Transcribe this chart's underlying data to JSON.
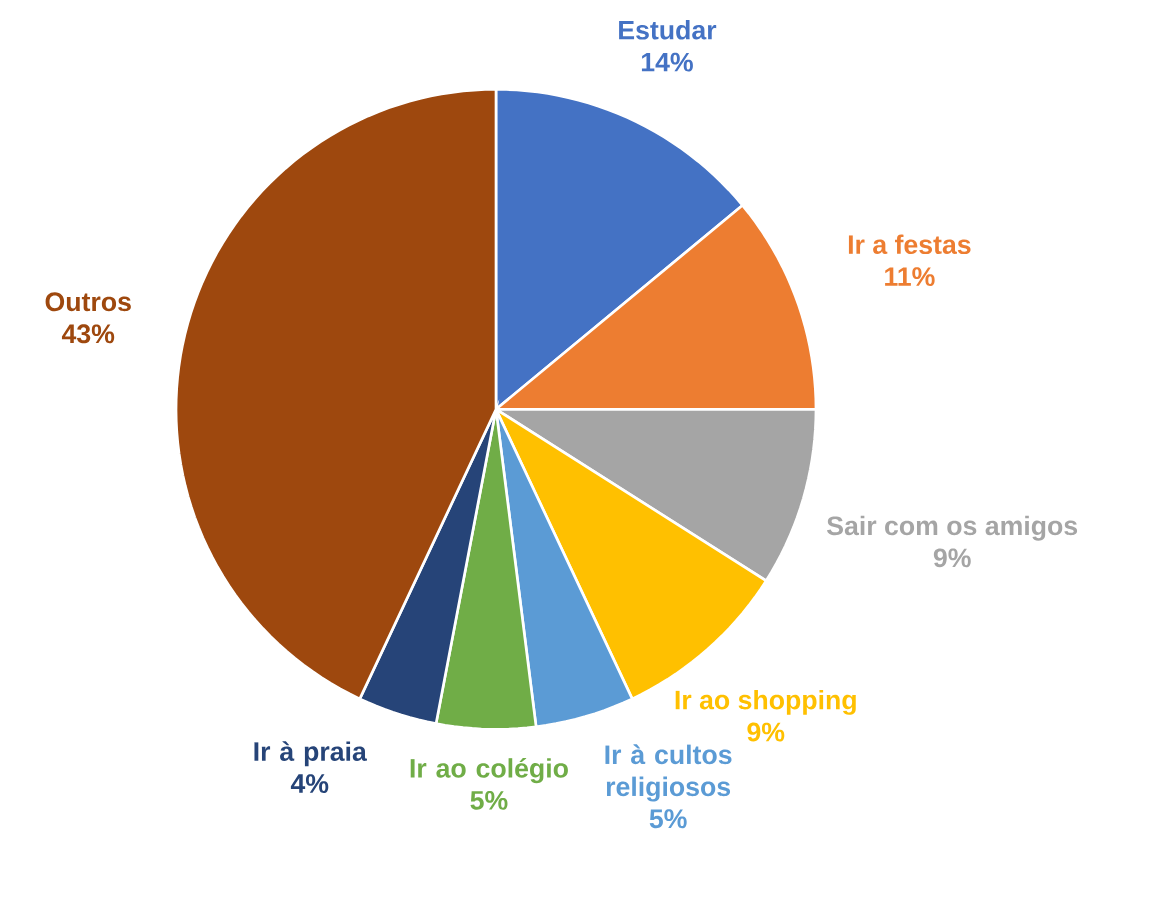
{
  "chart_data": {
    "type": "pie",
    "categories": [
      "Estudar",
      "Ir a festas",
      "Sair com os amigos",
      "Ir ao shopping",
      "Ir à cultos religiosos",
      "Ir ao colégio",
      "Ir à praia",
      "Outros"
    ],
    "values": [
      14,
      11,
      9,
      9,
      5,
      5,
      4,
      43
    ],
    "colors": [
      "#4472c4",
      "#ed7d31",
      "#a5a5a5",
      "#ffc000",
      "#5b9bd5",
      "#70ad47",
      "#264478",
      "#9e480e"
    ],
    "value_labels": [
      "14%",
      "11%",
      "9%",
      "9%",
      "5%",
      "5%",
      "4%",
      "43%"
    ]
  }
}
